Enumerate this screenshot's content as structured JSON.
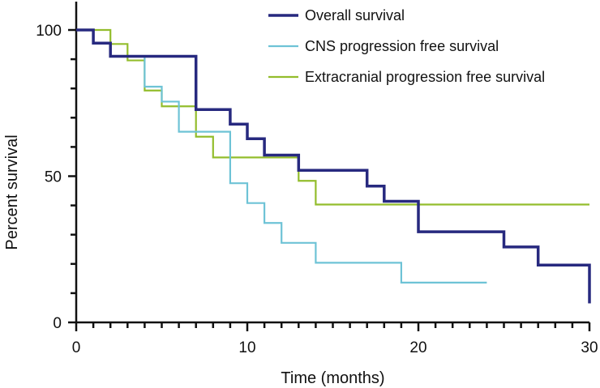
{
  "chart_data": {
    "type": "line",
    "step": true,
    "xlabel": "Time (months)",
    "ylabel": "Percent survival",
    "xlim": [
      0,
      30
    ],
    "ylim": [
      0,
      100
    ],
    "x_ticks": [
      0,
      10,
      20,
      30
    ],
    "y_ticks": [
      0,
      50,
      100
    ],
    "x_minor_step": 1,
    "y_minor_step": 10,
    "grid": false,
    "legend_position": "top-right",
    "series": [
      {
        "name": "Overall survival",
        "color": "#27297f",
        "x": [
          0,
          1,
          2,
          7,
          9,
          10,
          11,
          13,
          17,
          18,
          20,
          25,
          27,
          30,
          30
        ],
        "y": [
          100,
          95.5,
          91,
          72.8,
          67.8,
          62.8,
          57.2,
          52,
          46.6,
          41.4,
          31,
          25.8,
          19.6,
          19.6,
          6.5
        ]
      },
      {
        "name": "CNS progression free survival",
        "color": "#6ec3d6",
        "x": [
          0,
          1,
          2,
          4,
          5,
          6,
          9,
          10,
          11,
          12,
          14,
          19,
          24
        ],
        "y": [
          100,
          95.5,
          91,
          80.6,
          75.5,
          65.2,
          47.6,
          40.8,
          34,
          27.2,
          20.4,
          13.6,
          13.6
        ]
      },
      {
        "name": "Extracranial progression free survival",
        "color": "#93bd2c",
        "x": [
          0,
          2,
          3,
          4,
          5,
          7,
          8,
          13,
          14,
          30
        ],
        "y": [
          100,
          95.2,
          89.6,
          79.3,
          73.9,
          63.5,
          56.4,
          48.4,
          40.3,
          40.3
        ]
      }
    ]
  }
}
